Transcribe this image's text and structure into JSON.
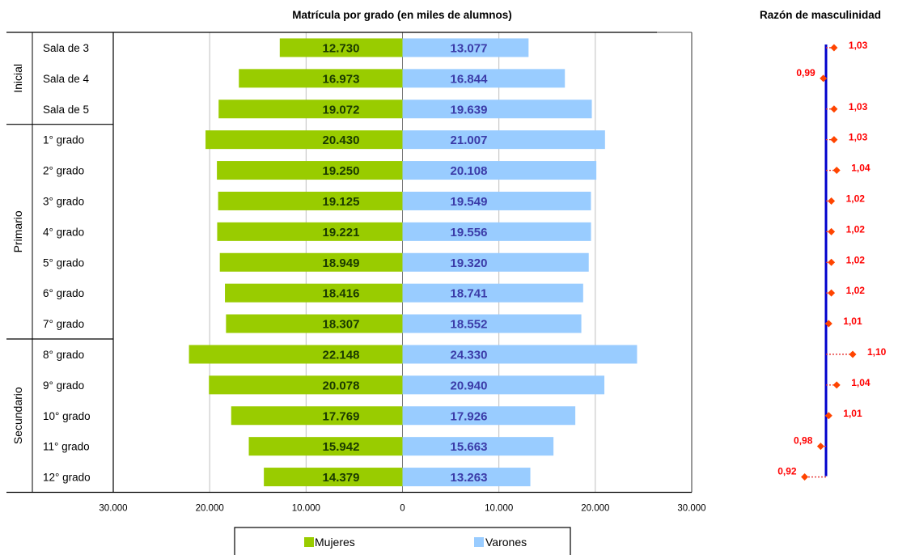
{
  "chart_data": [
    {
      "type": "bar",
      "orientation": "horizontal",
      "layout": "population-pyramid",
      "title": "Matrícula por grado (en miles de alumnos)",
      "groups": [
        {
          "label": "Inicial",
          "categories": [
            "Sala de 3",
            "Sala de 4",
            "Sala de 5"
          ]
        },
        {
          "label": "Primario",
          "categories": [
            "1° grado",
            "2° grado",
            "3° grado",
            "4° grado",
            "5° grado",
            "6° grado",
            "7° grado"
          ]
        },
        {
          "label": "Secundario",
          "categories": [
            "8° grado",
            "9° grado",
            "10° grado",
            "11° grado",
            "12° grado"
          ]
        }
      ],
      "categories": [
        "Sala de 3",
        "Sala de 4",
        "Sala de 5",
        "1° grado",
        "2° grado",
        "3° grado",
        "4° grado",
        "5° grado",
        "6° grado",
        "7° grado",
        "8° grado",
        "9° grado",
        "10° grado",
        "11° grado",
        "12° grado"
      ],
      "series": [
        {
          "name": "Mujeres",
          "color": "#99cc00",
          "values": [
            12730,
            16973,
            19072,
            20430,
            19250,
            19125,
            19221,
            18949,
            18416,
            18307,
            22148,
            20078,
            17769,
            15942,
            14379
          ],
          "labels": [
            "12.730",
            "16.973",
            "19.072",
            "20.430",
            "19.250",
            "19.125",
            "19.221",
            "18.949",
            "18.416",
            "18.307",
            "22.148",
            "20.078",
            "17.769",
            "15.942",
            "14.379"
          ]
        },
        {
          "name": "Varones",
          "color": "#99ccff",
          "values": [
            13077,
            16844,
            19639,
            21007,
            20108,
            19549,
            19556,
            19320,
            18741,
            18552,
            24330,
            20940,
            17926,
            15663,
            13263
          ],
          "labels": [
            "13.077",
            "16.844",
            "19.639",
            "21.007",
            "20.108",
            "19.549",
            "19.556",
            "19.320",
            "18.741",
            "18.552",
            "24.330",
            "20.940",
            "17.926",
            "15.663",
            "13.263"
          ]
        }
      ],
      "xlim": [
        -30000,
        30000
      ],
      "xticks": [
        -30000,
        -20000,
        -10000,
        0,
        10000,
        20000,
        30000
      ],
      "xtick_labels": [
        "30.000",
        "20.000",
        "10.000",
        "0",
        "10.000",
        "20.000",
        "30.000"
      ],
      "grid": "vertical",
      "legend": "bottom-center"
    },
    {
      "type": "scatter",
      "title": "Razón de masculinidad",
      "categories": [
        "Sala de 3",
        "Sala de 4",
        "Sala de 5",
        "1° grado",
        "2° grado",
        "3° grado",
        "4° grado",
        "5° grado",
        "6° grado",
        "7° grado",
        "8° grado",
        "9° grado",
        "10° grado",
        "11° grado",
        "12° grado"
      ],
      "values": [
        1.03,
        0.99,
        1.03,
        1.03,
        1.04,
        1.02,
        1.02,
        1.02,
        1.02,
        1.01,
        1.1,
        1.04,
        1.01,
        0.98,
        0.92
      ],
      "labels": [
        "1,03",
        "0,99",
        "1,03",
        "1,03",
        "1,04",
        "1,02",
        "1,02",
        "1,02",
        "1,02",
        "1,01",
        "1,10",
        "1,04",
        "1,01",
        "0,98",
        "0,92"
      ],
      "reference_value": 1.0,
      "marker_color": "#ff4400",
      "reference_color": "#0000cc"
    }
  ]
}
